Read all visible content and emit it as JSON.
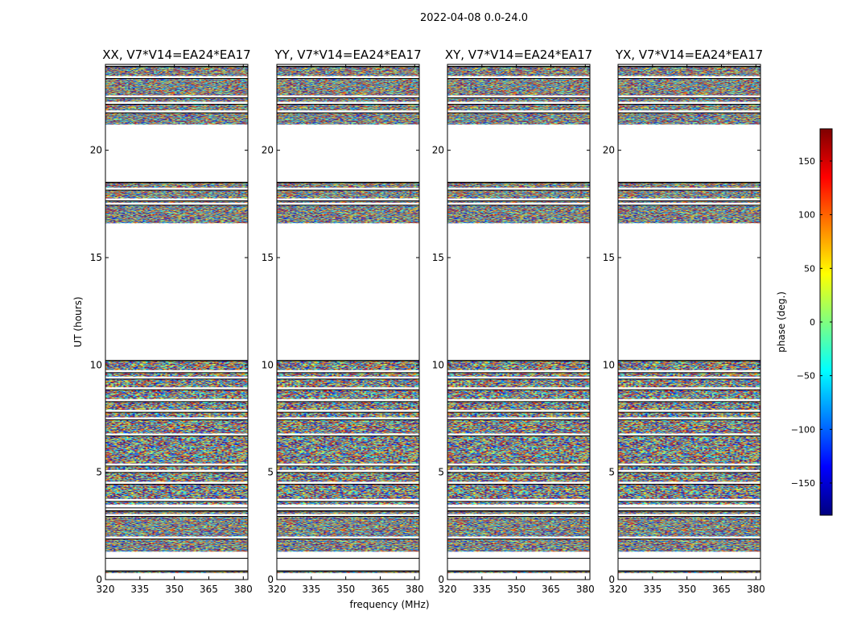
{
  "figure": {
    "suptitle": "2022-04-08 0.0-24.0",
    "xlabel": "frequency (MHz)",
    "ylabel": "UT (hours)"
  },
  "chart_data": {
    "type": "heatmap",
    "value_description": "visibility phase, random-looking colored noise in data rows; blank = flagged/no data",
    "x": {
      "label": "frequency (MHz)",
      "range": [
        320,
        382
      ],
      "ticks": [
        320,
        335,
        350,
        365,
        380
      ]
    },
    "y": {
      "label": "UT (hours)",
      "range": [
        0,
        24
      ],
      "ticks": [
        0,
        5,
        10,
        15,
        20
      ]
    },
    "panels": [
      {
        "title": "XX, V7*V14=EA24*EA17",
        "structured": true
      },
      {
        "title": "YY, V7*V14=EA24*EA17",
        "structured": true
      },
      {
        "title": "XY, V7*V14=EA24*EA17",
        "structured": false
      },
      {
        "title": "YX, V7*V14=EA24*EA17",
        "structured": false
      }
    ],
    "data_bands_ut": [
      [
        0.3,
        0.4
      ],
      [
        1.3,
        3.2
      ],
      [
        3.5,
        10.2
      ],
      [
        16.6,
        18.5
      ],
      [
        21.2,
        23.9
      ]
    ],
    "gap_lines_ut": [
      1.05,
      1.95,
      3.0,
      3.4,
      3.7,
      4.5,
      5.05,
      5.35,
      6.75,
      7.5,
      7.85,
      8.35,
      8.9,
      9.4,
      9.7,
      17.5,
      17.7,
      18.2,
      21.8,
      22.2,
      22.5,
      23.4
    ],
    "colorbar": {
      "label": "phase (deg.)",
      "range": [
        -180,
        180
      ],
      "ticks": [
        -150,
        -100,
        -50,
        0,
        50,
        100,
        150
      ],
      "tick_labels": [
        "−150",
        "−100",
        "−50",
        "0",
        "50",
        "100",
        "150"
      ],
      "colormap": "jet",
      "stops": [
        "#00007f",
        "#0000ff",
        "#007fff",
        "#00ffff",
        "#7fff7f",
        "#ffff00",
        "#ff7f00",
        "#ff0000",
        "#7f0000"
      ]
    }
  }
}
